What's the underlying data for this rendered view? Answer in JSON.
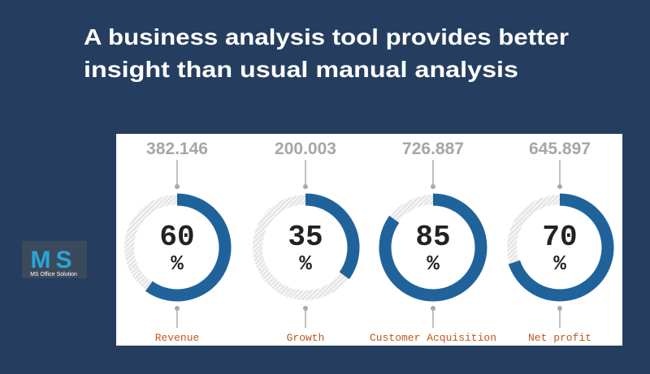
{
  "title": [
    "A business analysis tool provides better",
    "insight than usual manual analysis"
  ],
  "logo": {
    "letters": "MS",
    "caption": "MS Office Solution"
  },
  "chart_data": [
    {
      "type": "donut",
      "title": "Revenue",
      "annotation": 382.146,
      "values": [
        60
      ],
      "unit": "%",
      "ylim": [
        0,
        100
      ],
      "color": "#20639b"
    },
    {
      "type": "donut",
      "title": "Growth",
      "annotation": 200.003,
      "values": [
        35
      ],
      "unit": "%",
      "ylim": [
        0,
        100
      ],
      "color": "#20639b"
    },
    {
      "type": "donut",
      "title": "Customer Acquisition",
      "annotation": 726.887,
      "values": [
        85
      ],
      "unit": "%",
      "ylim": [
        0,
        100
      ],
      "color": "#20639b"
    },
    {
      "type": "donut",
      "title": "Net profit",
      "annotation": 645.897,
      "values": [
        70
      ],
      "unit": "%",
      "ylim": [
        0,
        100
      ],
      "color": "#20639b"
    }
  ]
}
